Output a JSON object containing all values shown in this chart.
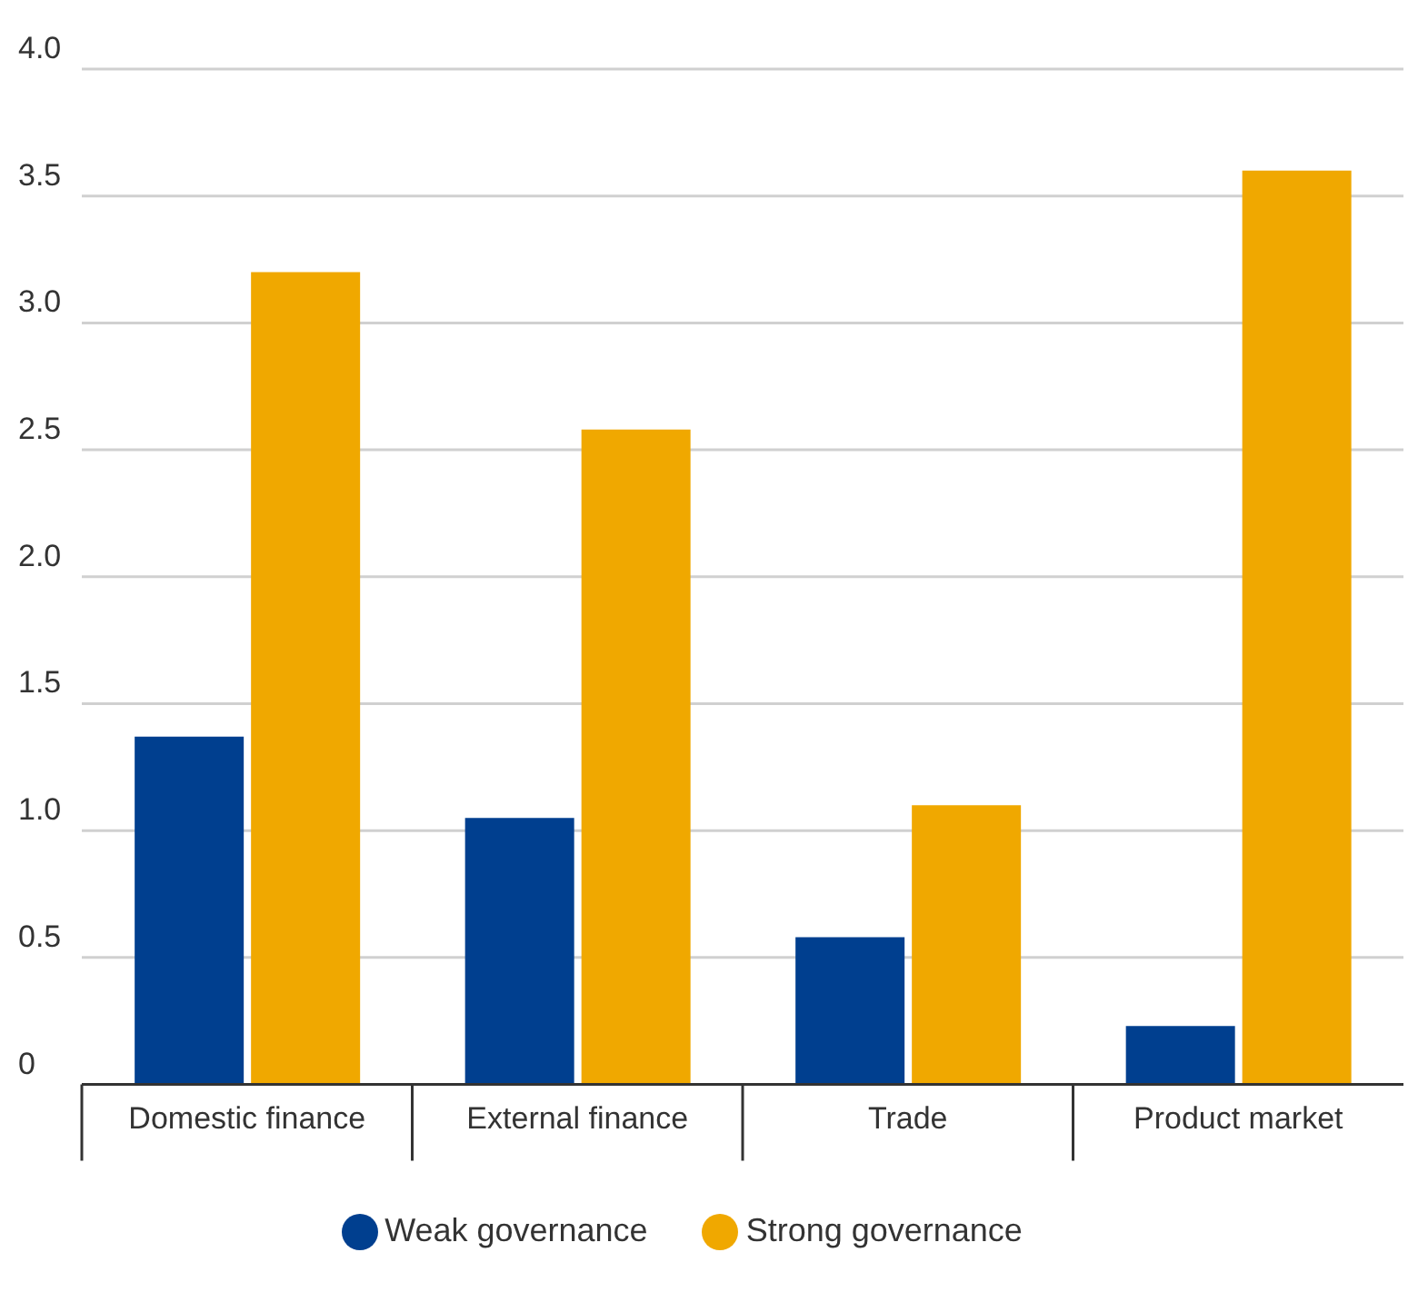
{
  "chart_data": {
    "type": "bar",
    "categories": [
      "Domestic finance",
      "External finance",
      "Trade",
      "Product market"
    ],
    "series": [
      {
        "name": "Weak governance",
        "color": "#003f8f",
        "values": [
          1.37,
          1.05,
          0.58,
          0.23
        ]
      },
      {
        "name": "Strong governance",
        "color": "#f0a800",
        "values": [
          3.2,
          2.58,
          1.1,
          3.6
        ]
      }
    ],
    "ylim": [
      0,
      4
    ],
    "yticks": [
      {
        "value": 0,
        "label": "0"
      },
      {
        "value": 0.5,
        "label": "0.5"
      },
      {
        "value": 1,
        "label": "1.0"
      },
      {
        "value": 1.5,
        "label": "1.5"
      },
      {
        "value": 2,
        "label": "2.0"
      },
      {
        "value": 2.5,
        "label": "2.5"
      },
      {
        "value": 3,
        "label": "3.0"
      },
      {
        "value": 3.5,
        "label": "3.5"
      },
      {
        "value": 4,
        "label": "4.0"
      }
    ],
    "grid": "y",
    "legend": "bottom"
  }
}
